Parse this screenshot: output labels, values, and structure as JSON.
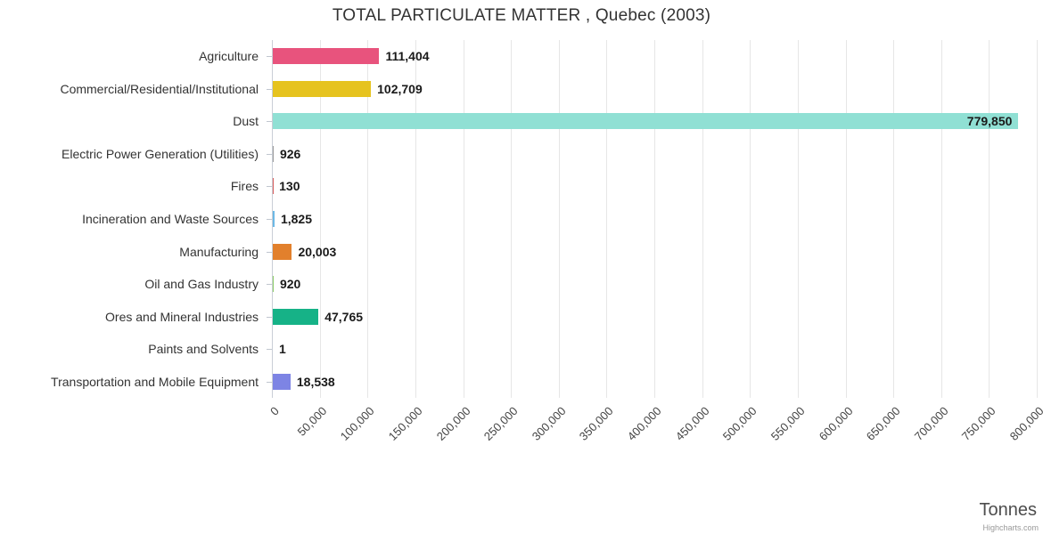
{
  "credit": "Highcharts.com",
  "chart_data": {
    "type": "bar",
    "orientation": "horizontal",
    "title": "TOTAL PARTICULATE MATTER , Quebec (2003)",
    "xlabel": "Tonnes",
    "categories": [
      "Agriculture",
      "Commercial/Residential/Institutional",
      "Dust",
      "Electric Power Generation (Utilities)",
      "Fires",
      "Incineration and Waste Sources",
      "Manufacturing",
      "Oil and Gas Industry",
      "Ores and Mineral Industries",
      "Paints and Solvents",
      "Transportation and Mobile Equipment"
    ],
    "values": [
      111404,
      102709,
      779850,
      926,
      130,
      1825,
      20003,
      920,
      47765,
      1,
      18538
    ],
    "value_labels": [
      "111,404",
      "102,709",
      "779,850",
      "926",
      "130",
      "1,825",
      "20,003",
      "920",
      "47,765",
      "1",
      "18,538"
    ],
    "colors": [
      "#e8537d",
      "#e6c31f",
      "#90e0d4",
      "#9e9e9e",
      "#d95f5f",
      "#6cb9e6",
      "#e2802c",
      "#8fce6a",
      "#16b287",
      "#b584d4",
      "#7d84e4"
    ],
    "xlim": [
      0,
      800000
    ],
    "tick_interval": 50000,
    "x_tick_labels": [
      "0",
      "50,000",
      "100,000",
      "150,000",
      "200,000",
      "250,000",
      "300,000",
      "350,000",
      "400,000",
      "450,000",
      "500,000",
      "550,000",
      "600,000",
      "650,000",
      "700,000",
      "750,000",
      "800,000"
    ],
    "grid": true,
    "legend": false
  }
}
